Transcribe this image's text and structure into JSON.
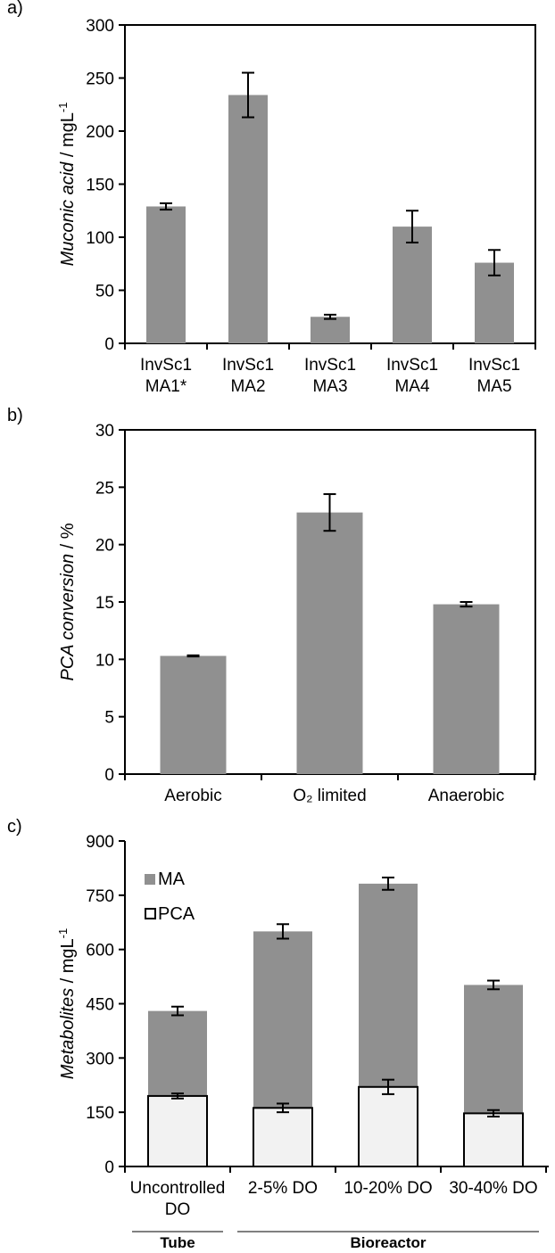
{
  "colors": {
    "bar": "#909090",
    "pca_fill": "#f2f2f2",
    "axis": "#000000"
  },
  "chart_data": [
    {
      "panel": "a)",
      "type": "bar",
      "ylabel_italic": "Muconic acid",
      "ylabel_unit": " / mgL",
      "ylabel_sup": "-1",
      "categories": [
        [
          "InvSc1",
          "MA1*"
        ],
        [
          "InvSc1",
          "MA2"
        ],
        [
          "InvSc1",
          "MA3"
        ],
        [
          "InvSc1",
          "MA4"
        ],
        [
          "InvSc1",
          "MA5"
        ]
      ],
      "values": [
        129,
        234,
        25,
        110,
        76
      ],
      "errors": [
        3,
        21,
        2,
        15,
        12
      ],
      "ylim": [
        0,
        300
      ],
      "yticks": [
        0,
        50,
        100,
        150,
        200,
        250,
        300
      ]
    },
    {
      "panel": "b)",
      "type": "bar",
      "ylabel_italic": "PCA conversion",
      "ylabel_unit": " / %",
      "categories": [
        "Aerobic",
        "O₂ limited",
        "Anaerobic"
      ],
      "values": [
        10.3,
        22.8,
        14.8
      ],
      "errors": [
        0.05,
        1.6,
        0.2
      ],
      "ylim": [
        0,
        30
      ],
      "yticks": [
        0,
        5,
        10,
        15,
        20,
        25,
        30
      ]
    },
    {
      "panel": "c)",
      "type": "bar",
      "stacked": true,
      "ylabel_italic": "Metabolites",
      "ylabel_unit": " / mgL",
      "ylabel_sup": "-1",
      "categories": [
        [
          "Uncontrolled",
          "DO"
        ],
        [
          "2-5% DO"
        ],
        [
          "10-20% DO"
        ],
        [
          "30-40% DO"
        ]
      ],
      "series": [
        {
          "name": "PCA",
          "values": [
            195,
            162,
            220,
            147
          ],
          "errors": [
            7,
            12,
            20,
            9
          ]
        },
        {
          "name": "MA",
          "values": [
            235,
            488,
            562,
            355
          ],
          "errors": [
            12,
            20,
            17,
            12
          ]
        }
      ],
      "legend_position": "top-left",
      "ylim": [
        0,
        900
      ],
      "yticks": [
        0,
        150,
        300,
        450,
        600,
        750,
        900
      ],
      "groups": [
        {
          "label": "Tube",
          "from": 0,
          "to": 0
        },
        {
          "label": "Bioreactor",
          "from": 1,
          "to": 3
        }
      ]
    }
  ]
}
